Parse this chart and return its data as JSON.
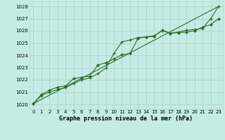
{
  "title": "Graphe pression niveau de la mer (hPa)",
  "bg_color": "#c5ece4",
  "grid_color": "#b0d8cc",
  "line_color": "#2d6b2d",
  "ylim": [
    1019.6,
    1028.4
  ],
  "xlim": [
    -0.5,
    23.5
  ],
  "yticks": [
    1020,
    1021,
    1022,
    1023,
    1024,
    1025,
    1026,
    1027,
    1028
  ],
  "xticks": [
    0,
    1,
    2,
    3,
    4,
    5,
    6,
    7,
    8,
    9,
    10,
    11,
    12,
    13,
    14,
    15,
    16,
    17,
    18,
    19,
    20,
    21,
    22,
    23
  ],
  "line1_x": [
    0,
    1,
    2,
    3,
    4,
    5,
    6,
    7,
    8,
    9,
    10,
    11,
    12,
    13,
    14,
    15,
    16,
    17,
    18,
    19,
    20,
    21,
    22,
    23
  ],
  "line1_y": [
    1020.05,
    1020.7,
    1021.0,
    1021.2,
    1021.35,
    1021.7,
    1022.0,
    1022.15,
    1022.5,
    1022.95,
    1024.15,
    1025.1,
    1025.25,
    1025.45,
    1025.5,
    1025.6,
    1026.0,
    1025.8,
    1025.9,
    1026.05,
    1026.1,
    1026.2,
    1027.0,
    1028.0
  ],
  "line2_x": [
    0,
    1,
    2,
    3,
    4,
    5,
    6,
    7,
    8,
    9,
    10,
    11,
    12,
    13,
    14,
    15,
    16,
    17,
    18,
    19,
    20,
    21,
    22,
    23
  ],
  "line2_y": [
    1020.05,
    1020.8,
    1021.15,
    1021.4,
    1021.5,
    1022.1,
    1022.2,
    1022.3,
    1023.2,
    1023.4,
    1023.7,
    1024.05,
    1024.15,
    1025.4,
    1025.5,
    1025.55,
    1026.05,
    1025.8,
    1025.85,
    1025.9,
    1026.0,
    1026.3,
    1026.5,
    1027.0
  ],
  "line3_x": [
    0,
    23
  ],
  "line3_y": [
    1020.05,
    1028.0
  ]
}
